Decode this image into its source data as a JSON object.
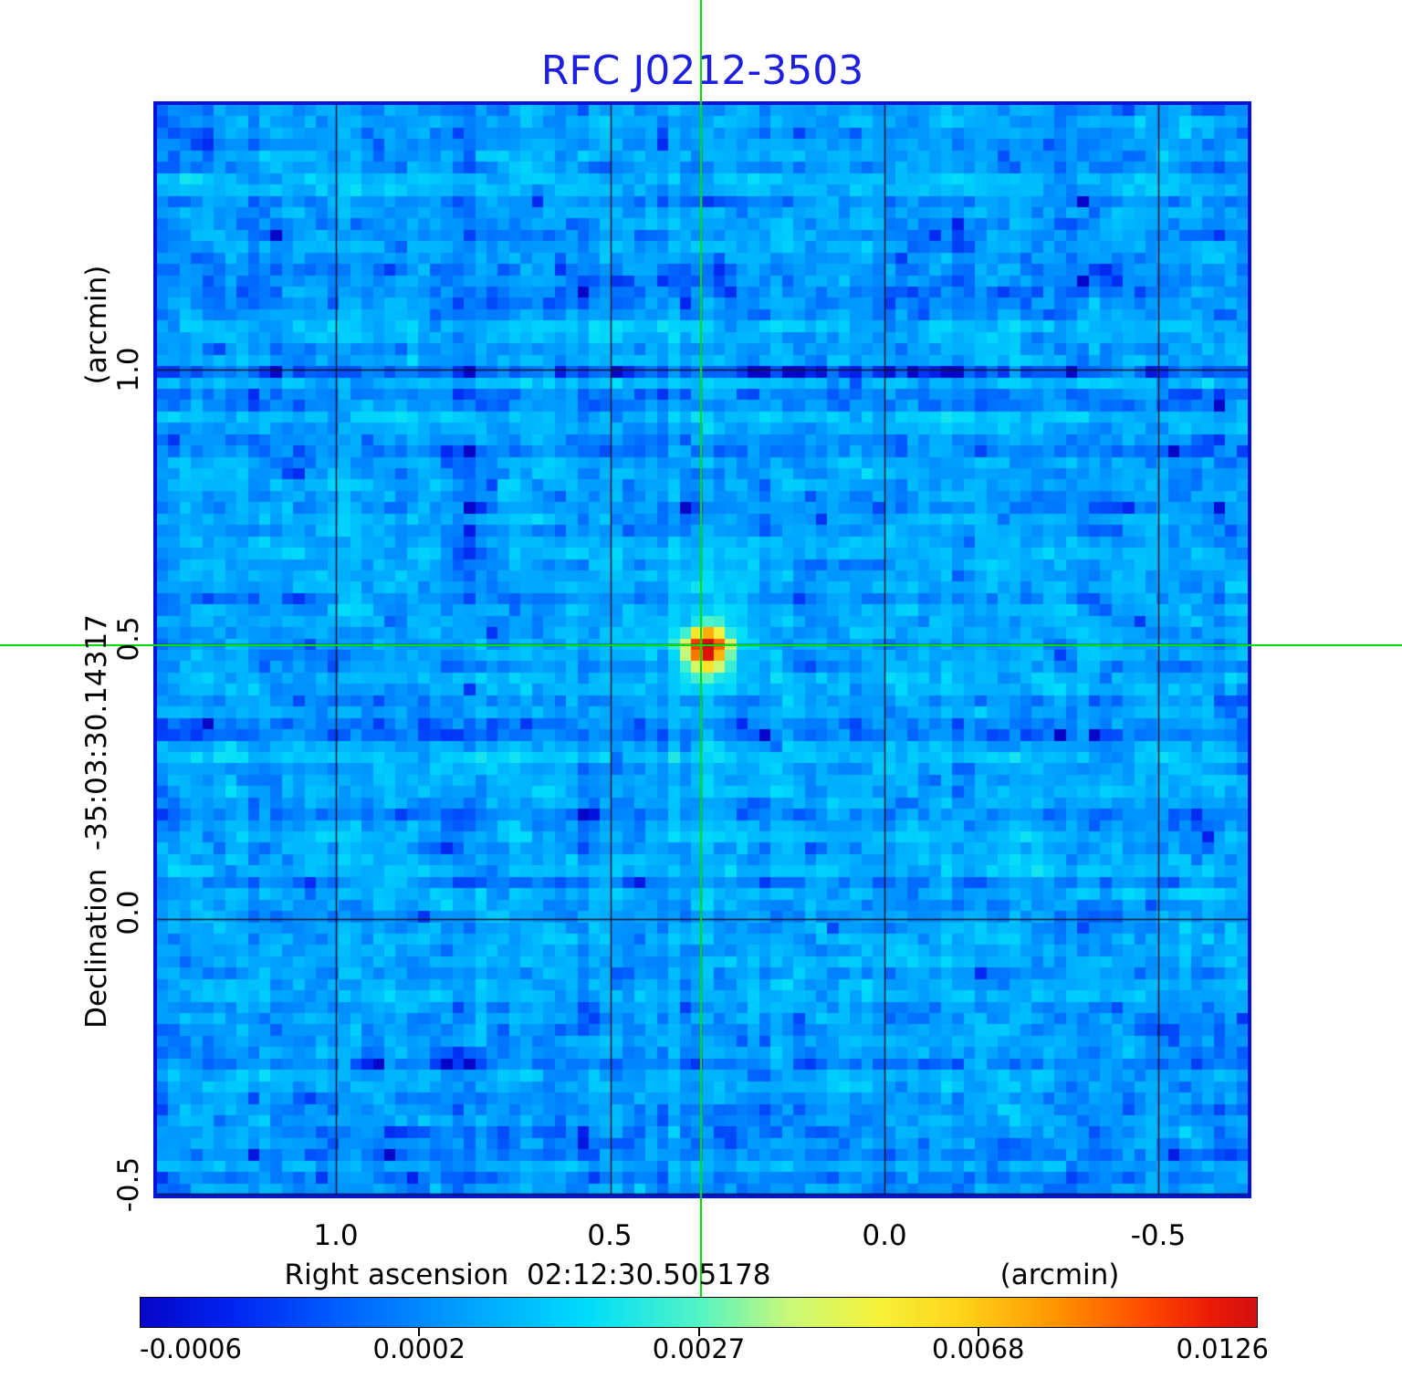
{
  "title": {
    "text": "RFC J0212-3503",
    "color": "#1e1ede"
  },
  "plot": {
    "border_color": "#0013dd",
    "grid_color": "#14142e"
  },
  "crosshair": {
    "color": "#00dd00"
  },
  "x_axis": {
    "tick_labels": [
      "1.0",
      "0.5",
      "0.0",
      "-0.5"
    ],
    "label": "Right ascension  02:12:30.505178",
    "unit": "(arcmin)"
  },
  "y_axis": {
    "tick_labels": [
      "1.0",
      "0.5",
      "0.0",
      "-0.5"
    ],
    "label": "Declination  -35:03:30.14317",
    "unit": "(arcmin)"
  },
  "colorbar": {
    "tick_labels": [
      "-0.0006",
      "0.0002",
      "0.0027",
      "0.0068",
      "0.0126"
    ],
    "border_color": "#000000"
  },
  "chart_data": {
    "type": "heatmap",
    "title": "RFC J0212-3503",
    "xlabel": "Right ascension  02:12:30.505178 (arcmin)",
    "ylabel": "Declination  -35:03:30.14317 (arcmin)",
    "x_ticks_arcmin": [
      1.0,
      0.5,
      0.0,
      -0.5
    ],
    "y_ticks_arcmin": [
      1.0,
      0.5,
      0.0,
      -0.5
    ],
    "x_range_arcmin": [
      1.33,
      -0.67
    ],
    "y_range_arcmin": [
      -0.51,
      1.49
    ],
    "colorbar_ticks": [
      -0.0006,
      0.0002,
      0.0027,
      0.0068,
      0.0126
    ],
    "value_range": [
      -0.0006,
      0.0126
    ],
    "color_scale": "sqrt: colorbar ticks equally spaced, value = vmin + (vmax-vmin)*p^2",
    "grid_on": true,
    "source": {
      "x_arcmin": 0.33,
      "y_arcmin": 0.5,
      "peak_value": 0.0126,
      "description": "compact bright (red/orange) point source marked by green crosshair"
    },
    "background": {
      "mean": 0.0005,
      "sigma": 0.0004,
      "description": "blue correlated noise field (interferometric dirty map)"
    },
    "palette": [
      [
        0.0,
        "#0606c8"
      ],
      [
        0.08,
        "#0023f0"
      ],
      [
        0.18,
        "#0060ff"
      ],
      [
        0.3,
        "#00a6ff"
      ],
      [
        0.4,
        "#00dcfc"
      ],
      [
        0.5,
        "#52f5c4"
      ],
      [
        0.58,
        "#c8f878"
      ],
      [
        0.66,
        "#f6f23a"
      ],
      [
        0.74,
        "#ffd018"
      ],
      [
        0.82,
        "#ff9400"
      ],
      [
        0.9,
        "#ff4a00"
      ],
      [
        0.96,
        "#ea1a06"
      ],
      [
        1.0,
        "#d21010"
      ]
    ],
    "noise": {
      "seed": 20212,
      "grid": 96,
      "mean": 0.0005,
      "cell_sigma": 0.00065,
      "row_sigma": 0.00022,
      "col_sigma": 0.0001,
      "source_cell": [
        47.9,
        47.3
      ]
    }
  }
}
